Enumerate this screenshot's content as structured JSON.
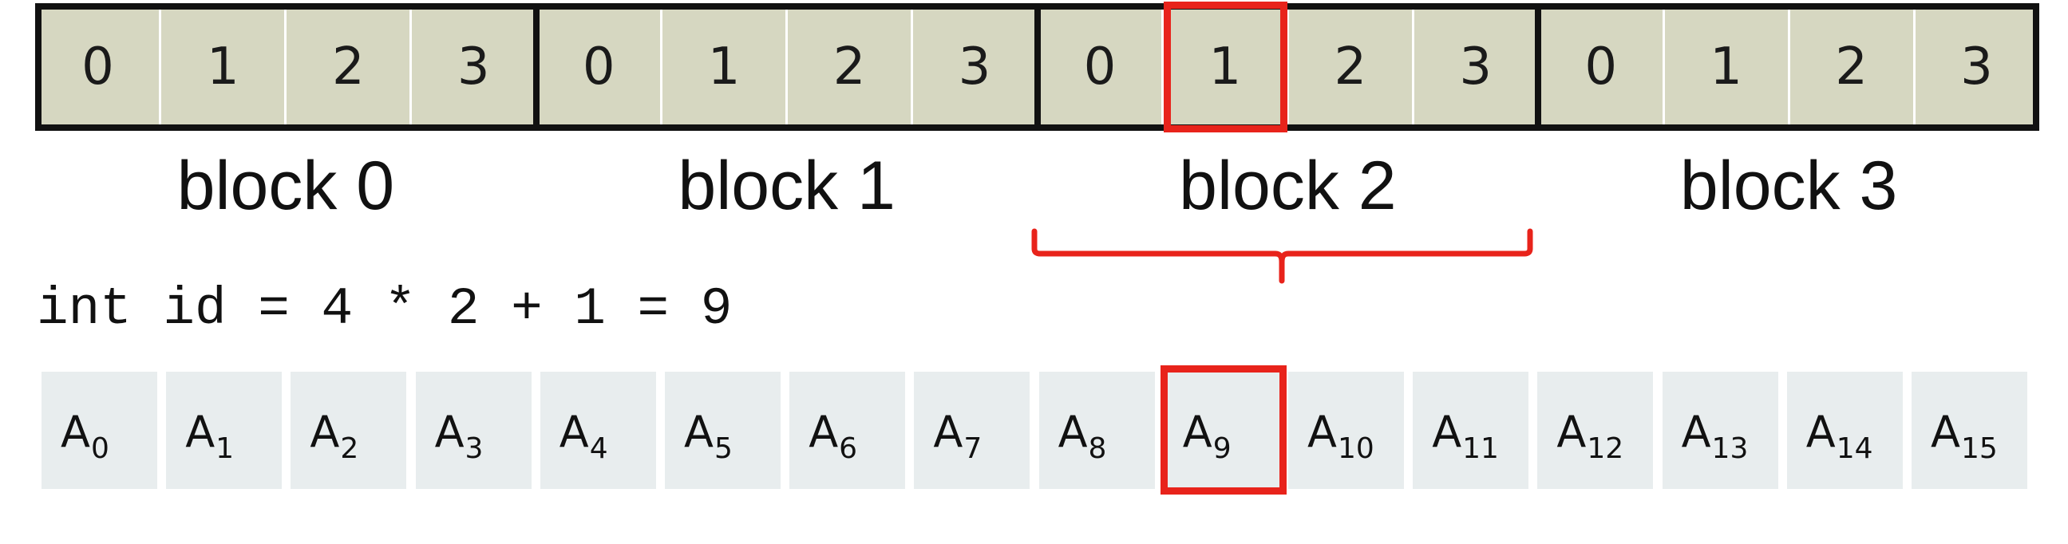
{
  "blocks": [
    {
      "label": "block 0",
      "threads": [
        "0",
        "1",
        "2",
        "3"
      ]
    },
    {
      "label": "block 1",
      "threads": [
        "0",
        "1",
        "2",
        "3"
      ]
    },
    {
      "label": "block 2",
      "threads": [
        "0",
        "1",
        "2",
        "3"
      ]
    },
    {
      "label": "block 3",
      "threads": [
        "0",
        "1",
        "2",
        "3"
      ]
    }
  ],
  "highlight": {
    "block": 2,
    "thread": 1,
    "array_index": 9
  },
  "code": "int id = 4 * 2 + 1 = 9",
  "array": {
    "letter": "A",
    "subscripts": [
      "0",
      "1",
      "2",
      "3",
      "4",
      "5",
      "6",
      "7",
      "8",
      "9",
      "10",
      "11",
      "12",
      "13",
      "14",
      "15"
    ]
  },
  "colors": {
    "thread_fill": "#d6d7c1",
    "array_fill": "#e8edee",
    "highlight": "#e8231b",
    "border": "#111111"
  }
}
